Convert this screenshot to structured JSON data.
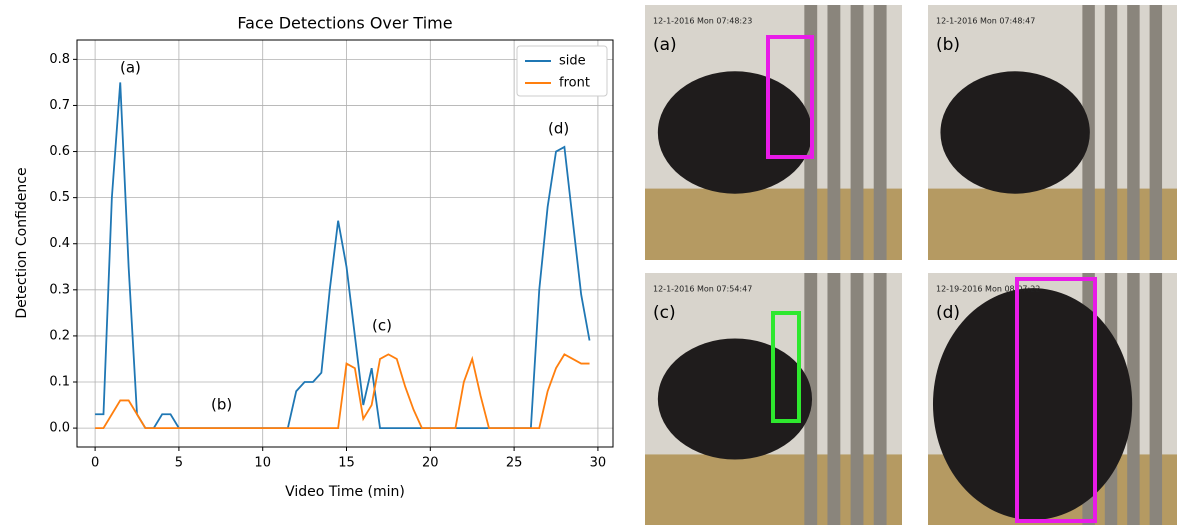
{
  "chart_data": {
    "type": "line",
    "title": "Face Detections Over Time",
    "x_label": "Video Time (min)",
    "y_label": "Detection Confidence",
    "x": [
      0,
      0.5,
      1,
      1.5,
      2,
      2.5,
      3,
      3.5,
      4,
      4.5,
      5,
      5.5,
      6,
      6.5,
      7,
      7.5,
      8,
      8.5,
      9,
      9.5,
      10,
      10.5,
      11,
      11.5,
      12,
      12.5,
      13,
      13.5,
      14,
      14.5,
      15,
      15.5,
      16,
      16.5,
      17,
      17.5,
      18,
      18.5,
      19,
      19.5,
      20,
      20.5,
      21,
      21.5,
      22,
      22.5,
      23,
      23.5,
      24,
      24.5,
      25,
      25.5,
      26,
      26.5,
      27,
      27.5,
      28,
      28.5,
      29,
      29.5
    ],
    "series": [
      {
        "name": "side",
        "color": "#1f77b4",
        "values": [
          0.03,
          0.03,
          0.5,
          0.75,
          0.35,
          0.03,
          0,
          0,
          0.03,
          0.03,
          0,
          0,
          0,
          0,
          0,
          0,
          0,
          0,
          0,
          0,
          0,
          0,
          0,
          0,
          0.08,
          0.1,
          0.1,
          0.12,
          0.3,
          0.45,
          0.35,
          0.2,
          0.05,
          0.13,
          0,
          0,
          0,
          0,
          0,
          0,
          0,
          0,
          0,
          0,
          0,
          0,
          0,
          0,
          0,
          0,
          0,
          0,
          0,
          0.3,
          0.48,
          0.6,
          0.61,
          0.45,
          0.29,
          0.19
        ]
      },
      {
        "name": "front",
        "color": "#ff7f0e",
        "values": [
          0,
          0,
          0.03,
          0.06,
          0.06,
          0.03,
          0,
          0,
          0,
          0,
          0,
          0,
          0,
          0,
          0,
          0,
          0,
          0,
          0,
          0,
          0,
          0,
          0,
          0,
          0,
          0,
          0,
          0,
          0,
          0,
          0.14,
          0.13,
          0.02,
          0.05,
          0.15,
          0.16,
          0.15,
          0.09,
          0.04,
          0,
          0,
          0,
          0,
          0,
          0.1,
          0.15,
          0.07,
          0,
          0,
          0,
          0,
          0,
          0,
          0,
          0.08,
          0.13,
          0.16,
          0.15,
          0.14,
          0.14
        ]
      }
    ],
    "xlim": [
      -1.08,
      30.9
    ],
    "ylim": [
      -0.041,
      0.842
    ],
    "xticks": [
      0,
      5,
      10,
      15,
      20,
      25,
      30
    ],
    "yticks": [
      {
        "value": 0,
        "label": "0.0"
      },
      0.1,
      0.2,
      0.3,
      0.4,
      0.5,
      0.6,
      0.7,
      0.8
    ],
    "grid": true,
    "legend": "upper right",
    "annotations": [
      "(a)",
      "(b)",
      "(c)",
      "(d)"
    ]
  },
  "images": [
    {
      "label": "(a)",
      "timestamp": "12-1-2016 Mon 07:48:23",
      "box": "#e81be8"
    },
    {
      "label": "(b)",
      "timestamp": "12-1-2016 Mon 07:48:47"
    },
    {
      "label": "(c)",
      "timestamp": "12-1-2016 Mon 07:54:47",
      "box": "#2ee82e"
    },
    {
      "label": "(d)",
      "timestamp": "12-19-2016 Mon 08:07:22",
      "box": "#e81be8"
    }
  ]
}
